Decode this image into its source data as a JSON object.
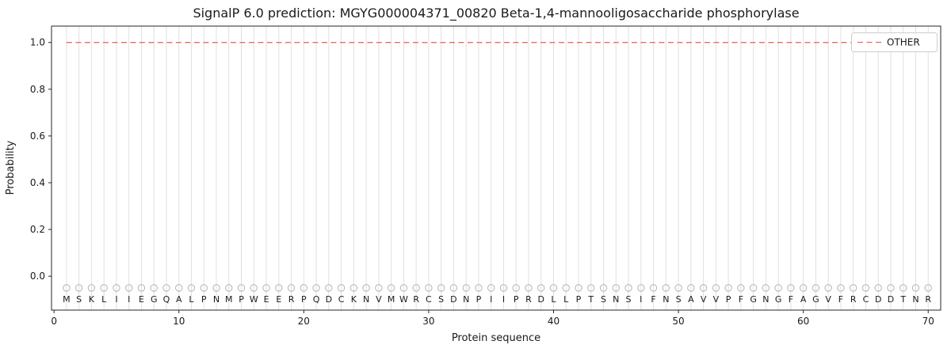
{
  "chart_data": {
    "type": "line",
    "title": "SignalP 6.0 prediction: MGYG000004371_00820 Beta-1,4-mannooligosaccharide phosphorylase",
    "xlabel": "Protein sequence",
    "ylabel": "Probability",
    "xlim": [
      -0.2,
      71.0
    ],
    "ylim": [
      -0.145,
      1.07
    ],
    "xticks": [
      0,
      10,
      20,
      30,
      40,
      50,
      60,
      70
    ],
    "yticks": [
      0.0,
      0.2,
      0.4,
      0.6,
      0.8,
      1.0
    ],
    "grid": {
      "vertical_per_residue": true,
      "color": "#e0e0e0"
    },
    "axis_color": "#262626",
    "text_color": "#1a1a1a",
    "sequence": "MSKLIIEGQALPNMPWEERPQDCKNVMWRCSDNPIIPRDLLPTSNSIFNSAVVPFGNGFAGVFRCDDTNR",
    "positions": {
      "start": 1,
      "end": 70
    },
    "series": [
      {
        "name": "OTHER",
        "color": "#ec6a6a",
        "line_style": "dashed",
        "x_start": 1,
        "values": [
          1.0,
          1.0,
          1.0,
          1.0,
          1.0,
          1.0,
          1.0,
          1.0,
          1.0,
          1.0,
          1.0,
          1.0,
          1.0,
          1.0,
          1.0,
          1.0,
          1.0,
          1.0,
          1.0,
          1.0,
          1.0,
          1.0,
          1.0,
          1.0,
          1.0,
          1.0,
          1.0,
          1.0,
          1.0,
          1.0,
          1.0,
          1.0,
          1.0,
          1.0,
          1.0,
          1.0,
          1.0,
          1.0,
          1.0,
          1.0,
          1.0,
          1.0,
          1.0,
          1.0,
          1.0,
          1.0,
          1.0,
          1.0,
          1.0,
          1.0,
          1.0,
          1.0,
          1.0,
          1.0,
          1.0,
          1.0,
          1.0,
          1.0,
          1.0,
          1.0,
          1.0,
          1.0,
          1.0,
          1.0,
          1.0,
          1.0,
          1.0,
          1.0,
          1.0,
          1.0
        ]
      }
    ],
    "markers": {
      "shape": "open-circle",
      "y": -0.05,
      "color": "#b3b3b3",
      "count": 70
    },
    "legend": {
      "position": "upper-right",
      "entries": [
        {
          "label": "OTHER",
          "color": "#ec6a6a",
          "style": "dashed"
        }
      ]
    }
  }
}
